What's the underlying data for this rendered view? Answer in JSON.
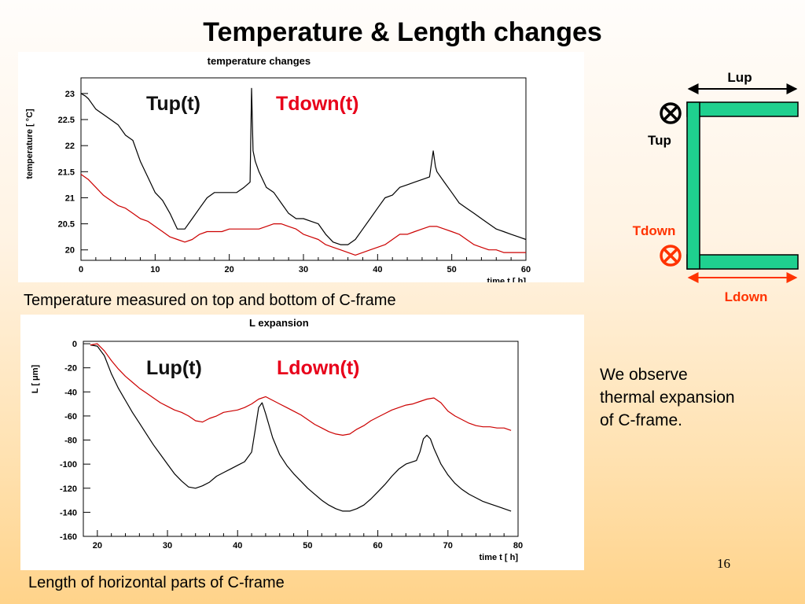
{
  "slide": {
    "title": "Temperature & Length changes",
    "page_number": "16",
    "caption_top": "Temperature measured on top and bottom of C-frame",
    "caption_bottom": "Length of horizontal parts of C-frame",
    "note_lines": [
      "We observe",
      "thermal expansion",
      "of C-frame."
    ]
  },
  "diagram": {
    "lup_label": "Lup",
    "ldown_label": "Ldown",
    "tup_label": "Tup",
    "tdown_label": "Tdown",
    "frame_color": "#1fd08f",
    "up_color": "#000000",
    "down_color": "#ff3300"
  },
  "chart_data": [
    {
      "type": "line",
      "title": "temperature changes",
      "xlabel": "time t [ h]",
      "ylabel": "temperature [ °C]",
      "xlim": [
        0,
        60
      ],
      "ylim": [
        19.8,
        23.3
      ],
      "xticks": [
        0,
        10,
        20,
        30,
        40,
        50,
        60
      ],
      "yticks": [
        20,
        20.5,
        21,
        21.5,
        22,
        22.5,
        23
      ],
      "grid": false,
      "legend": "inline-top",
      "series": [
        {
          "name": "Tup(t)",
          "color": "#000000",
          "x": [
            0,
            0.6,
            1,
            2,
            3,
            4,
            5,
            6,
            7,
            8,
            9,
            10,
            11,
            12,
            13,
            14,
            15,
            16,
            17,
            18,
            19,
            20,
            21,
            22,
            22.8,
            23,
            23.2,
            23.5,
            24,
            25,
            26,
            27,
            28,
            29,
            30,
            31,
            32,
            33,
            34,
            35,
            36,
            37,
            38,
            39,
            40,
            41,
            42,
            43,
            44,
            45,
            46,
            47,
            47.5,
            47.8,
            48,
            49,
            50,
            51,
            52,
            53,
            54,
            55,
            56,
            57,
            58,
            59,
            60
          ],
          "y": [
            23.0,
            22.95,
            22.9,
            22.7,
            22.6,
            22.5,
            22.4,
            22.2,
            22.1,
            21.7,
            21.4,
            21.1,
            20.95,
            20.7,
            20.4,
            20.4,
            20.6,
            20.8,
            21.0,
            21.1,
            21.1,
            21.1,
            21.1,
            21.2,
            21.3,
            23.1,
            21.9,
            21.7,
            21.5,
            21.2,
            21.1,
            20.9,
            20.7,
            20.6,
            20.6,
            20.55,
            20.5,
            20.3,
            20.15,
            20.1,
            20.1,
            20.2,
            20.4,
            20.6,
            20.8,
            21.0,
            21.05,
            21.2,
            21.25,
            21.3,
            21.35,
            21.4,
            21.9,
            21.6,
            21.5,
            21.3,
            21.1,
            20.9,
            20.8,
            20.7,
            20.6,
            20.5,
            20.4,
            20.35,
            20.3,
            20.25,
            20.2
          ]
        },
        {
          "name": "Tdown(t)",
          "color": "#cc0000",
          "x": [
            0,
            1,
            2,
            3,
            4,
            5,
            6,
            7,
            8,
            9,
            10,
            11,
            12,
            13,
            14,
            15,
            16,
            17,
            18,
            19,
            20,
            21,
            22,
            23,
            24,
            25,
            26,
            27,
            28,
            29,
            30,
            31,
            32,
            33,
            34,
            35,
            36,
            37,
            38,
            39,
            40,
            41,
            42,
            43,
            44,
            45,
            46,
            47,
            48,
            49,
            50,
            51,
            52,
            53,
            54,
            55,
            56,
            57,
            58,
            59,
            60
          ],
          "y": [
            21.45,
            21.35,
            21.2,
            21.05,
            20.95,
            20.85,
            20.8,
            20.7,
            20.6,
            20.55,
            20.45,
            20.35,
            20.25,
            20.2,
            20.15,
            20.2,
            20.3,
            20.35,
            20.35,
            20.35,
            20.4,
            20.4,
            20.4,
            20.4,
            20.4,
            20.45,
            20.5,
            20.5,
            20.45,
            20.4,
            20.3,
            20.25,
            20.2,
            20.1,
            20.05,
            20.0,
            19.95,
            19.9,
            19.95,
            20.0,
            20.05,
            20.1,
            20.2,
            20.3,
            20.3,
            20.35,
            20.4,
            20.45,
            20.45,
            20.4,
            20.35,
            20.3,
            20.2,
            20.1,
            20.05,
            20.0,
            20.0,
            19.95,
            19.95,
            19.95,
            19.95
          ]
        }
      ]
    },
    {
      "type": "line",
      "title": "L expansion",
      "xlabel": "time t [ h]",
      "ylabel": "L [ μm]",
      "xlim": [
        18,
        80
      ],
      "ylim": [
        -160,
        2
      ],
      "xticks": [
        20,
        30,
        40,
        50,
        60,
        70,
        80
      ],
      "yticks": [
        0,
        -20,
        -40,
        -60,
        -80,
        -100,
        -120,
        -140,
        -160
      ],
      "grid": false,
      "legend": "inline-top",
      "series": [
        {
          "name": "Lup(t)",
          "color": "#000000",
          "x": [
            19,
            20,
            21,
            22,
            23,
            24,
            25,
            26,
            27,
            28,
            29,
            30,
            31,
            32,
            33,
            34,
            35,
            36,
            37,
            38,
            39,
            40,
            41,
            42,
            42.5,
            43,
            43.5,
            44,
            45,
            46,
            47,
            48,
            49,
            50,
            51,
            52,
            53,
            54,
            55,
            56,
            57,
            58,
            59,
            60,
            61,
            62,
            63,
            64,
            65,
            65.5,
            66,
            66.5,
            67,
            67.5,
            68,
            69,
            70,
            71,
            72,
            73,
            74,
            75,
            76,
            77,
            78,
            79
          ],
          "y": [
            -1,
            -2,
            -10,
            -25,
            -37,
            -47,
            -57,
            -66,
            -75,
            -84,
            -92,
            -100,
            -108,
            -114,
            -119,
            -120,
            -118,
            -115,
            -110,
            -107,
            -104,
            -101,
            -98,
            -90,
            -72,
            -53,
            -49,
            -58,
            -78,
            -92,
            -101,
            -108,
            -114,
            -120,
            -125,
            -130,
            -134,
            -137,
            -139,
            -139,
            -137,
            -134,
            -129,
            -123,
            -117,
            -110,
            -104,
            -100,
            -98,
            -97,
            -90,
            -79,
            -76,
            -79,
            -87,
            -100,
            -109,
            -116,
            -121,
            -125,
            -128,
            -131,
            -133,
            -135,
            -137,
            -139
          ]
        },
        {
          "name": "Ldown(t)",
          "color": "#cc0000",
          "x": [
            19,
            20,
            21,
            22,
            23,
            24,
            25,
            26,
            27,
            28,
            29,
            30,
            31,
            32,
            33,
            34,
            35,
            36,
            37,
            38,
            39,
            40,
            41,
            42,
            43,
            44,
            45,
            46,
            47,
            48,
            49,
            50,
            51,
            52,
            53,
            54,
            55,
            56,
            57,
            58,
            59,
            60,
            61,
            62,
            63,
            64,
            65,
            66,
            67,
            68,
            69,
            70,
            71,
            72,
            73,
            74,
            75,
            76,
            77,
            78,
            79
          ],
          "y": [
            -1,
            0,
            -6,
            -14,
            -21,
            -27,
            -32,
            -37,
            -41,
            -45,
            -49,
            -52,
            -55,
            -57,
            -60,
            -64,
            -65,
            -62,
            -60,
            -57,
            -56,
            -55,
            -53,
            -50,
            -46,
            -44,
            -47,
            -50,
            -53,
            -56,
            -59,
            -63,
            -67,
            -70,
            -73,
            -75,
            -76,
            -75,
            -71,
            -68,
            -64,
            -61,
            -58,
            -55,
            -53,
            -51,
            -50,
            -48,
            -46,
            -45,
            -49,
            -56,
            -60,
            -63,
            -66,
            -68,
            -69,
            -69,
            -70,
            -70,
            -72
          ]
        }
      ]
    }
  ]
}
